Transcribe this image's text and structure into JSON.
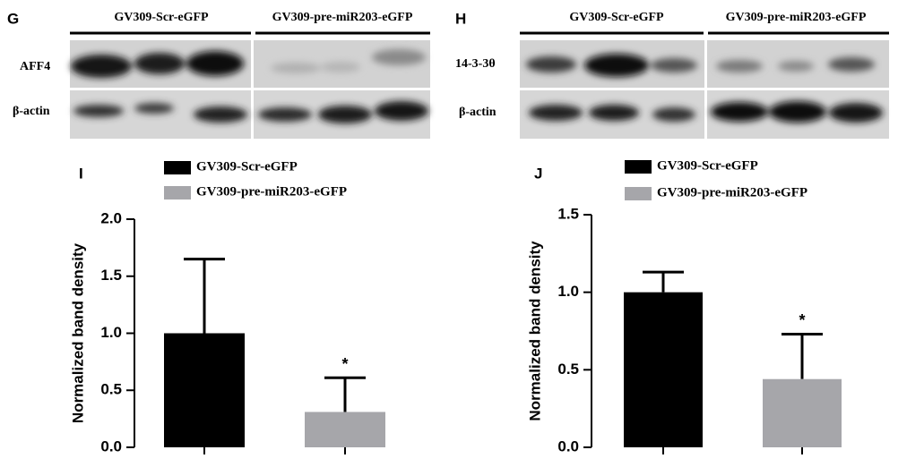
{
  "blots": [
    {
      "panel": "G",
      "groups": [
        "GV309-Scr-eGFP",
        "GV309-pre-miR203-eGFP"
      ],
      "rows": [
        "AFF4",
        "β-actin"
      ]
    },
    {
      "panel": "H",
      "groups": [
        "GV309-Scr-eGFP",
        "GV309-pre-miR203-eGFP"
      ],
      "rows": [
        "14-3-3θ",
        "β-actin"
      ]
    }
  ],
  "chart_data": [
    {
      "type": "bar",
      "panel_label": "I",
      "ylabel": "Normalized band density",
      "series": [
        {
          "name": "GV309-Scr-eGFP",
          "color": "#000000",
          "values": [
            1.0
          ],
          "errors": [
            0.65
          ]
        },
        {
          "name": "GV309-pre-miR203-eGFP",
          "color": "#a6a6aa",
          "values": [
            0.31
          ],
          "errors": [
            0.3
          ]
        }
      ],
      "annotation": "*",
      "ylim": [
        0,
        2
      ],
      "yticks": [
        {
          "value": 0,
          "label": "0.0"
        },
        0.5,
        {
          "value": 1,
          "label": "1.0"
        },
        1.5,
        {
          "value": 2,
          "label": "2.0"
        }
      ]
    },
    {
      "type": "bar",
      "panel_label": "J",
      "ylabel": "Normalized band density",
      "series": [
        {
          "name": "GV309-Scr-eGFP",
          "color": "#000000",
          "values": [
            1.0
          ],
          "errors": [
            0.13
          ]
        },
        {
          "name": "GV309-pre-miR203-eGFP",
          "color": "#a6a6aa",
          "values": [
            0.44
          ],
          "errors": [
            0.29
          ]
        }
      ],
      "annotation": "*",
      "ylim": [
        0,
        1.5
      ],
      "yticks": [
        {
          "value": 0,
          "label": "0.0"
        },
        0.5,
        {
          "value": 1,
          "label": "1.0"
        },
        1.5
      ]
    }
  ]
}
